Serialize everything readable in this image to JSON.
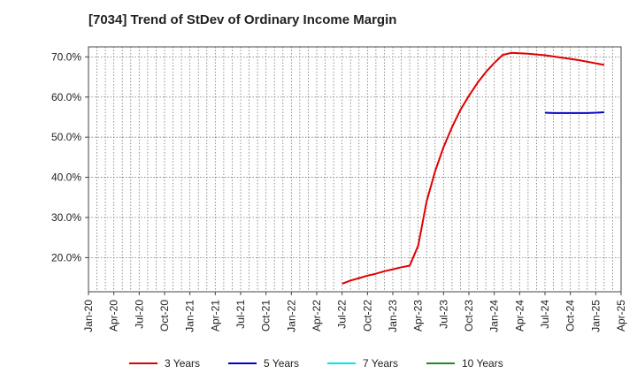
{
  "chart_data": {
    "type": "line",
    "title": "[7034]  Trend of StDev of Ordinary Income Margin",
    "xlabel": "",
    "ylabel": "",
    "x_ticks": [
      "Jan-20",
      "Apr-20",
      "Jul-20",
      "Oct-20",
      "Jan-21",
      "Apr-21",
      "Jul-21",
      "Oct-21",
      "Jan-22",
      "Apr-22",
      "Jul-22",
      "Oct-22",
      "Jan-23",
      "Apr-23",
      "Jul-23",
      "Oct-23",
      "Jan-24",
      "Apr-24",
      "Jul-24",
      "Oct-24",
      "Jan-25",
      "Apr-25"
    ],
    "y_ticks": [
      "20.0%",
      "30.0%",
      "40.0%",
      "50.0%",
      "60.0%",
      "70.0%"
    ],
    "ylim": [
      11.5,
      72.5
    ],
    "grid": true,
    "legend_position": "bottom",
    "series": [
      {
        "name": "3 Years",
        "color": "#e00000",
        "points": [
          [
            "Jul-22",
            13.5
          ],
          [
            "Aug-22",
            14.3
          ],
          [
            "Sep-22",
            14.9
          ],
          [
            "Oct-22",
            15.5
          ],
          [
            "Nov-22",
            16.0
          ],
          [
            "Dec-22",
            16.6
          ],
          [
            "Jan-23",
            17.1
          ],
          [
            "Feb-23",
            17.6
          ],
          [
            "Mar-23",
            18.0
          ],
          [
            "Apr-23",
            23.0
          ],
          [
            "May-23",
            34.0
          ],
          [
            "Jun-23",
            41.5
          ],
          [
            "Jul-23",
            47.5
          ],
          [
            "Aug-23",
            52.5
          ],
          [
            "Sep-23",
            56.8
          ],
          [
            "Oct-23",
            60.3
          ],
          [
            "Nov-23",
            63.5
          ],
          [
            "Dec-23",
            66.2
          ],
          [
            "Jan-24",
            68.5
          ],
          [
            "Feb-24",
            70.5
          ],
          [
            "Mar-24",
            71.0
          ],
          [
            "Apr-24",
            70.9
          ],
          [
            "May-24",
            70.8
          ],
          [
            "Jun-24",
            70.6
          ],
          [
            "Jul-24",
            70.4
          ],
          [
            "Aug-24",
            70.1
          ],
          [
            "Sep-24",
            69.8
          ],
          [
            "Oct-24",
            69.5
          ],
          [
            "Nov-24",
            69.2
          ],
          [
            "Dec-24",
            68.8
          ],
          [
            "Jan-25",
            68.4
          ],
          [
            "Feb-25",
            68.0
          ]
        ]
      },
      {
        "name": "5 Years",
        "color": "#0000cc",
        "points": [
          [
            "Jul-24",
            56.1
          ],
          [
            "Aug-24",
            56.0
          ],
          [
            "Sep-24",
            56.0
          ],
          [
            "Oct-24",
            56.0
          ],
          [
            "Nov-24",
            56.0
          ],
          [
            "Dec-24",
            56.0
          ],
          [
            "Jan-25",
            56.1
          ],
          [
            "Feb-25",
            56.2
          ]
        ]
      },
      {
        "name": "7 Years",
        "color": "#00e5ee",
        "points": []
      },
      {
        "name": "10 Years",
        "color": "#228b22",
        "points": []
      }
    ]
  }
}
